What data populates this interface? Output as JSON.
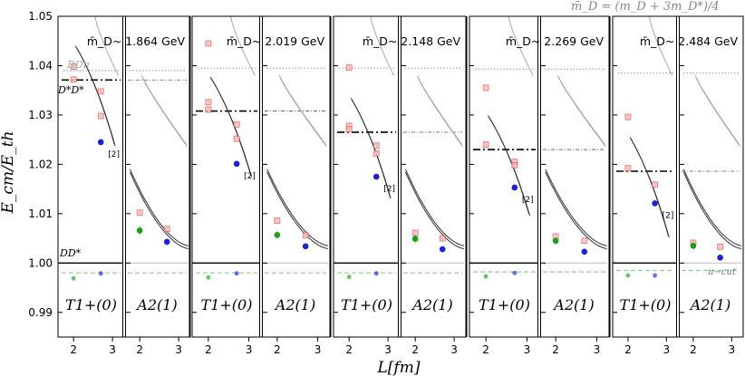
{
  "chart_data": {
    "type": "scatter",
    "title": "",
    "header_formula": "m̄_D = (m_D + 3m_D*)/4",
    "xlabel": "L[fm]",
    "ylabel": "E_cm/E_th",
    "ylim": [
      0.985,
      1.05
    ],
    "xlim": [
      1.6,
      3.3
    ],
    "y_ticks": [
      "0.99",
      "1.00",
      "1.01",
      "1.02",
      "1.03",
      "1.04",
      "1.05"
    ],
    "y_tick_values": [
      0.99,
      1.0,
      1.01,
      1.02,
      1.03,
      1.04,
      1.05
    ],
    "x_ticks": [
      "2",
      "3"
    ],
    "x_tick_values": [
      2,
      3
    ],
    "annotations": {
      "ddpi": "DDπ",
      "dstar_dstar": "D*D*",
      "dd_star": "DD*",
      "u_cut": "u−cut",
      "degeneracy": "[2]"
    },
    "groups": [
      {
        "mass_label": "m̄_D~ 1.864 GeV",
        "dstar_threshold": 1.0371,
        "ddpi_threshold": 1.039,
        "ucut": 0.998,
        "panels": [
          {
            "irrep": "T1+(0)",
            "series": [
              {
                "name": "red",
                "x": [
                  2.0,
                  2.0,
                  2.7,
                  2.7
                ],
                "y": [
                  1.0398,
                  1.0372,
                  1.0348,
                  1.0298
                ],
                "yerr": [
                  0.0006,
                  0.0006,
                  0.0005,
                  0.0005
                ]
              },
              {
                "name": "blue",
                "x": [
                  2.7
                ],
                "y": [
                  1.0245
                ],
                "yerr": [
                  0.0006
                ]
              },
              {
                "name": "green",
                "x": [
                  2.0
                ],
                "y": [
                  0.9969
                ],
                "yerr": [
                  0.0003
                ]
              },
              {
                "name": "blue-low",
                "x": [
                  2.7
                ],
                "y": [
                  0.9979
                ],
                "yerr": [
                  0.0003
                ]
              }
            ]
          },
          {
            "irrep": "A2(1)",
            "series": [
              {
                "name": "red",
                "x": [
                  2.0,
                  2.7
                ],
                "y": [
                  1.0102,
                  1.0069
                ],
                "yerr": [
                  0.0006,
                  0.0005
                ]
              },
              {
                "name": "green",
                "x": [
                  2.0
                ],
                "y": [
                  1.0066
                ],
                "yerr": [
                  0.0008
                ]
              },
              {
                "name": "blue",
                "x": [
                  2.7
                ],
                "y": [
                  1.0043
                ],
                "yerr": [
                  0.0006
                ]
              }
            ]
          }
        ]
      },
      {
        "mass_label": "m̄_D~ 2.019 GeV",
        "dstar_threshold": 1.0308,
        "ddpi_threshold": 1.0395,
        "ucut": 0.998,
        "panels": [
          {
            "irrep": "T1+(0)",
            "series": [
              {
                "name": "red",
                "x": [
                  2.0,
                  2.0,
                  2.0,
                  2.7,
                  2.7
                ],
                "y": [
                  1.0445,
                  1.0326,
                  1.0311,
                  1.0281,
                  1.0252
                ],
                "yerr": [
                  0.0006,
                  0.0006,
                  0.0006,
                  0.0005,
                  0.0005
                ]
              },
              {
                "name": "blue",
                "x": [
                  2.7
                ],
                "y": [
                  1.0201
                ],
                "yerr": [
                  0.0006
                ]
              },
              {
                "name": "green",
                "x": [
                  2.0
                ],
                "y": [
                  0.9971
                ],
                "yerr": [
                  0.0003
                ]
              },
              {
                "name": "blue-low",
                "x": [
                  2.7
                ],
                "y": [
                  0.9979
                ],
                "yerr": [
                  0.0003
                ]
              }
            ]
          },
          {
            "irrep": "A2(1)",
            "series": [
              {
                "name": "red",
                "x": [
                  2.0,
                  2.7
                ],
                "y": [
                  1.0086,
                  1.0056
                ],
                "yerr": [
                  0.0006,
                  0.0005
                ]
              },
              {
                "name": "green",
                "x": [
                  2.0
                ],
                "y": [
                  1.0057
                ],
                "yerr": [
                  0.0007
                ]
              },
              {
                "name": "blue",
                "x": [
                  2.7
                ],
                "y": [
                  1.0034
                ],
                "yerr": [
                  0.0006
                ]
              }
            ]
          }
        ]
      },
      {
        "mass_label": "m̄_D~ 2.148 GeV",
        "dstar_threshold": 1.0265,
        "ddpi_threshold": 1.0395,
        "ucut": 0.998,
        "panels": [
          {
            "irrep": "T1+(0)",
            "series": [
              {
                "name": "red",
                "x": [
                  2.0,
                  2.0,
                  2.0,
                  2.7,
                  2.7
                ],
                "y": [
                  1.0396,
                  1.0278,
                  1.0271,
                  1.0238,
                  1.0222
                ],
                "yerr": [
                  0.0006,
                  0.0006,
                  0.0006,
                  0.0005,
                  0.0005
                ]
              },
              {
                "name": "blue",
                "x": [
                  2.7
                ],
                "y": [
                  1.0175
                ],
                "yerr": [
                  0.0006
                ]
              },
              {
                "name": "green",
                "x": [
                  2.0
                ],
                "y": [
                  0.9972
                ],
                "yerr": [
                  0.0003
                ]
              },
              {
                "name": "blue-low",
                "x": [
                  2.7
                ],
                "y": [
                  0.9979
                ],
                "yerr": [
                  0.0003
                ]
              }
            ]
          },
          {
            "irrep": "A2(1)",
            "series": [
              {
                "name": "red",
                "x": [
                  2.0,
                  2.7
                ],
                "y": [
                  1.0061,
                  1.005
                ],
                "yerr": [
                  0.0006,
                  0.0005
                ]
              },
              {
                "name": "green",
                "x": [
                  2.0
                ],
                "y": [
                  1.0049
                ],
                "yerr": [
                  0.0007
                ]
              },
              {
                "name": "blue",
                "x": [
                  2.7
                ],
                "y": [
                  1.0028
                ],
                "yerr": [
                  0.0006
                ]
              }
            ]
          }
        ]
      },
      {
        "mass_label": "m̄_D~ 2.269 GeV",
        "dstar_threshold": 1.023,
        "ddpi_threshold": 1.0393,
        "ucut": 0.9982,
        "panels": [
          {
            "irrep": "T1+(0)",
            "series": [
              {
                "name": "red",
                "x": [
                  2.0,
                  2.0,
                  2.7,
                  2.7
                ],
                "y": [
                  1.0355,
                  1.024,
                  1.0205,
                  1.0198
                ],
                "yerr": [
                  0.0006,
                  0.0006,
                  0.0005,
                  0.0005
                ]
              },
              {
                "name": "blue",
                "x": [
                  2.7
                ],
                "y": [
                  1.0153
                ],
                "yerr": [
                  0.0006
                ]
              },
              {
                "name": "green",
                "x": [
                  2.0
                ],
                "y": [
                  0.9973
                ],
                "yerr": [
                  0.0003
                ]
              },
              {
                "name": "blue-low",
                "x": [
                  2.7
                ],
                "y": [
                  0.998
                ],
                "yerr": [
                  0.0003
                ]
              }
            ]
          },
          {
            "irrep": "A2(1)",
            "series": [
              {
                "name": "red",
                "x": [
                  2.0,
                  2.7
                ],
                "y": [
                  1.0054,
                  1.0045
                ],
                "yerr": [
                  0.0006,
                  0.0005
                ]
              },
              {
                "name": "green",
                "x": [
                  2.0
                ],
                "y": [
                  1.0045
                ],
                "yerr": [
                  0.0007
                ]
              },
              {
                "name": "blue",
                "x": [
                  2.7
                ],
                "y": [
                  1.0023
                ],
                "yerr": [
                  0.0006
                ]
              }
            ]
          }
        ]
      },
      {
        "mass_label": "m̄_D~ 2.484 GeV",
        "dstar_threshold": 1.0186,
        "ddpi_threshold": 1.0385,
        "ucut": 0.9985,
        "panels": [
          {
            "irrep": "T1+(0)",
            "series": [
              {
                "name": "red",
                "x": [
                  2.0,
                  2.0,
                  2.7
                ],
                "y": [
                  1.0296,
                  1.0192,
                  1.0159
                ],
                "yerr": [
                  0.0006,
                  0.0006,
                  0.0005
                ]
              },
              {
                "name": "blue",
                "x": [
                  2.7
                ],
                "y": [
                  1.0121
                ],
                "yerr": [
                  0.0006
                ]
              },
              {
                "name": "green",
                "x": [
                  2.0
                ],
                "y": [
                  0.9975
                ],
                "yerr": [
                  0.0003
                ]
              },
              {
                "name": "blue-low",
                "x": [
                  2.7
                ],
                "y": [
                  0.9975
                ],
                "yerr": [
                  0.0003
                ]
              }
            ]
          },
          {
            "irrep": "A2(1)",
            "series": [
              {
                "name": "red",
                "x": [
                  2.0,
                  2.7
                ],
                "y": [
                  1.0041,
                  1.0033
                ],
                "yerr": [
                  0.0006,
                  0.0005
                ]
              },
              {
                "name": "green",
                "x": [
                  2.0
                ],
                "y": [
                  1.0035
                ],
                "yerr": [
                  0.0007
                ]
              },
              {
                "name": "blue",
                "x": [
                  2.7
                ],
                "y": [
                  1.0011
                ],
                "yerr": [
                  0.0006
                ]
              }
            ]
          }
        ]
      }
    ],
    "colors": {
      "red": "#d9534f",
      "blue": "#1f1fd6",
      "green": "#1e9e1e",
      "curve": "#333333",
      "grey_curve": "#aaaaaa",
      "ucut": "#90d090",
      "threshold": "#000000",
      "dotted": "#aaaaaa"
    }
  }
}
